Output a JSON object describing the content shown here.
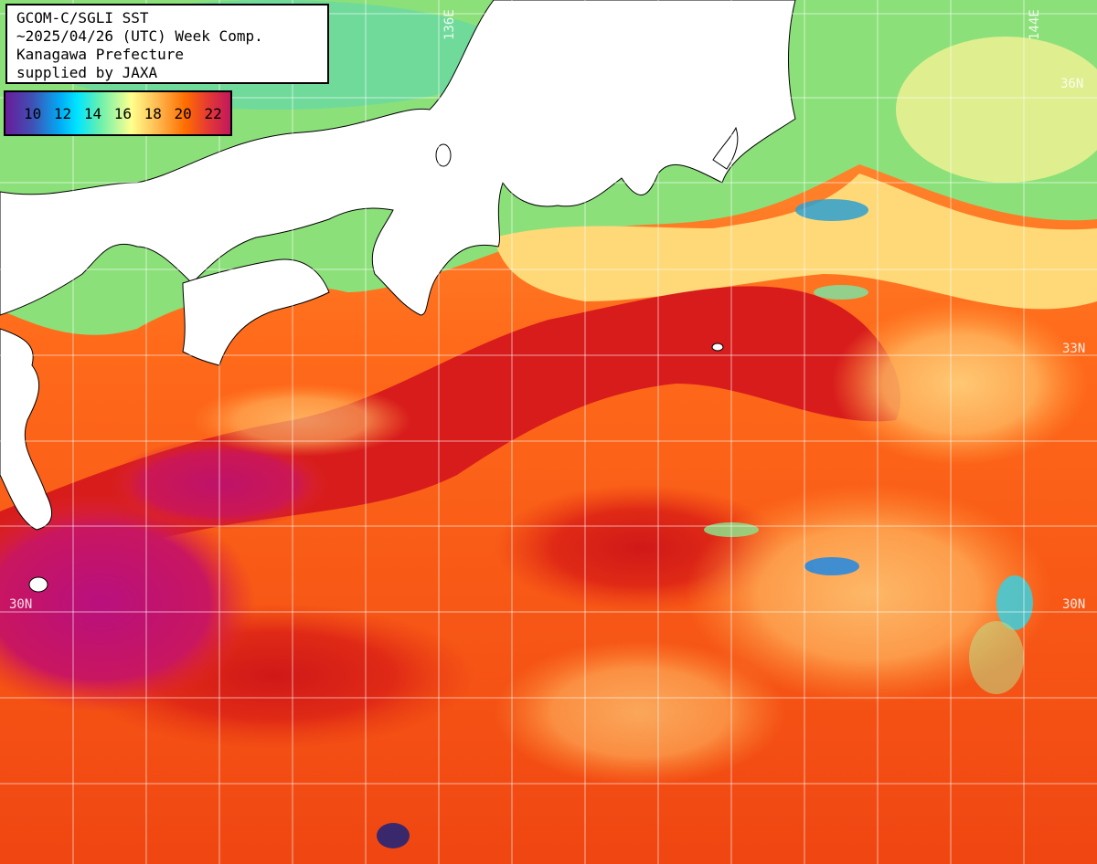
{
  "header": {
    "lines": [
      "GCOM-C/SGLI SST",
      "~2025/04/26 (UTC) Week Comp.",
      "Kanagawa Prefecture",
      "supplied by JAXA"
    ]
  },
  "legend": {
    "labels": [
      "10",
      "12",
      "14",
      "16",
      "18",
      "20",
      "22"
    ]
  },
  "grid_labels": {
    "lon_136": "136E",
    "lon_144": "144E",
    "lat_36": "36N",
    "lat_33": "33N",
    "lat_30_left": "30N",
    "lat_30_right": "30N"
  },
  "colors": {
    "land": "#ffffff",
    "warm": "#e8300f",
    "hot": "#c91a1a",
    "cool": "#ffd070",
    "cold": "#7fe08a",
    "purple": "#b0168a"
  }
}
